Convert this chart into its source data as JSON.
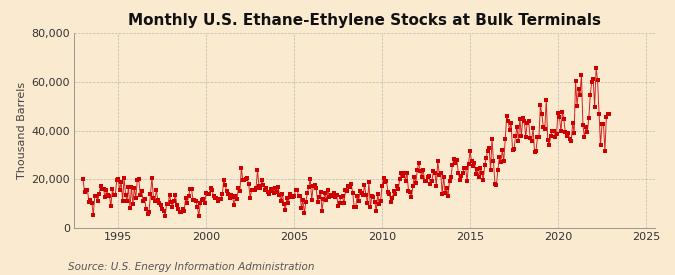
{
  "title": "Monthly U.S. Ethane-Ethylene Stocks at Bulk Terminals",
  "ylabel": "Thousand Barrels",
  "source_text": "Source: U.S. Energy Information Administration",
  "background_color": "#faebd0",
  "plot_bg_color": "#faebd0",
  "line_color": "#cc0000",
  "marker_color": "#cc0000",
  "grid_color": "#aaaaaa",
  "title_fontsize": 11,
  "ylabel_fontsize": 8,
  "source_fontsize": 7.5,
  "tick_fontsize": 8,
  "ylim": [
    0,
    80000
  ],
  "yticks": [
    0,
    20000,
    40000,
    60000,
    80000
  ],
  "xlim_start": 1992.5,
  "xlim_end": 2025.5,
  "xticks": [
    1995,
    2000,
    2005,
    2010,
    2015,
    2020,
    2025
  ]
}
